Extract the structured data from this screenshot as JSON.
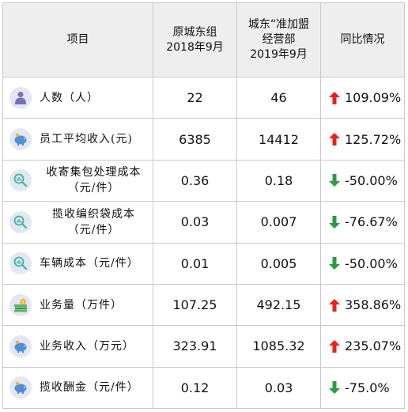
{
  "header": {
    "item": "项目",
    "col_a_line1": "原城东组",
    "col_a_line2": "2018年9月",
    "col_b_line1": "城东“准加盟",
    "col_b_line2": "经营部",
    "col_b_line3": "2019年9月",
    "change": "同比情况"
  },
  "colors": {
    "up": "#e8231c",
    "down": "#2f9a43",
    "icon_bg": "#e3e6f3",
    "header_bg": "#eeeeee"
  },
  "rows": [
    {
      "label_line1": "人数（人）",
      "label_line2": "",
      "icon": "person-icon",
      "a": "22",
      "b": "46",
      "direction": "up",
      "change": "109.09%"
    },
    {
      "label_line1": "员工平均收入(元)",
      "label_line2": "",
      "icon": "piggy-bank-icon",
      "a": "6385",
      "b": "14412",
      "direction": "up",
      "change": "125.72%"
    },
    {
      "label_line1": "收寄集包处理成本",
      "label_line2": "（元/件）",
      "icon": "magnify-chart-icon",
      "a": "0.36",
      "b": "0.18",
      "direction": "down",
      "change": "-50.00%"
    },
    {
      "label_line1": "揽收编织袋成本",
      "label_line2": "（元/件）",
      "icon": "magnify-chart-icon",
      "a": "0.03",
      "b": "0.007",
      "direction": "down",
      "change": "-76.67%"
    },
    {
      "label_line1": "车辆成本（元/件）",
      "label_line2": "",
      "icon": "magnify-chart-icon",
      "a": "0.01",
      "b": "0.005",
      "direction": "down",
      "change": "-50.00%"
    },
    {
      "label_line1": "业务量（万件）",
      "label_line2": "",
      "icon": "money-stack-icon",
      "a": "107.25",
      "b": "492.15",
      "direction": "up",
      "change": "358.86%"
    },
    {
      "label_line1": "业务收入（万元）",
      "label_line2": "",
      "icon": "piggy-bank-icon",
      "a": "323.91",
      "b": "1085.32",
      "direction": "up",
      "change": "235.07%"
    },
    {
      "label_line1": "揽收酬金（元/件）",
      "label_line2": "",
      "icon": "piggy-bank-icon",
      "a": "0.12",
      "b": "0.03",
      "direction": "down",
      "change": "-75.0%"
    }
  ]
}
